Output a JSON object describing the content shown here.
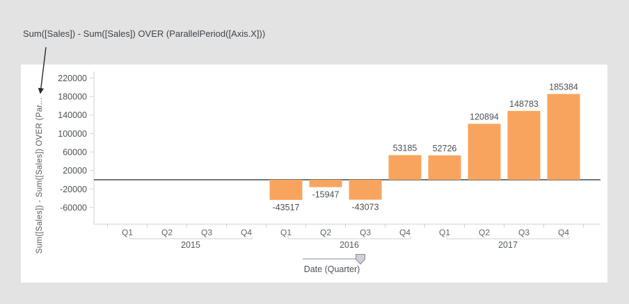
{
  "annotation": {
    "expression_label": "Sum([Sales]) - Sum([Sales]) OVER (ParallelPeriod([Axis.X]))"
  },
  "colors": {
    "background": "#e3e3e3",
    "panel": "#ffffff",
    "bar": "#f9a45e",
    "zero_line": "#41464b",
    "axis_line": "#ccd0d6",
    "tick_text": "#4d5156",
    "slider": "#9aa0a6"
  },
  "chart_data": {
    "type": "bar",
    "title": "",
    "ylabel": "Sum([Sales]) - Sum([Sales]) OVER (Par...",
    "xlabel": "Date (Quarter)",
    "ylim": [
      -96000,
      234000
    ],
    "y_ticks": [
      220000,
      180000,
      140000,
      100000,
      60000,
      20000,
      -20000,
      -60000
    ],
    "grid": false,
    "legend": "none",
    "bar_color": "#f9a45e",
    "categories": [
      {
        "year": "2015",
        "quarter": "Q1",
        "value": null
      },
      {
        "year": "2015",
        "quarter": "Q2",
        "value": null
      },
      {
        "year": "2015",
        "quarter": "Q3",
        "value": null
      },
      {
        "year": "2015",
        "quarter": "Q4",
        "value": null
      },
      {
        "year": "2016",
        "quarter": "Q1",
        "value": -43517
      },
      {
        "year": "2016",
        "quarter": "Q2",
        "value": -15947
      },
      {
        "year": "2016",
        "quarter": "Q3",
        "value": -43073
      },
      {
        "year": "2016",
        "quarter": "Q4",
        "value": 53185
      },
      {
        "year": "2017",
        "quarter": "Q1",
        "value": 52726
      },
      {
        "year": "2017",
        "quarter": "Q2",
        "value": 120894
      },
      {
        "year": "2017",
        "quarter": "Q3",
        "value": 148783
      },
      {
        "year": "2017",
        "quarter": "Q4",
        "value": 185384
      }
    ]
  }
}
